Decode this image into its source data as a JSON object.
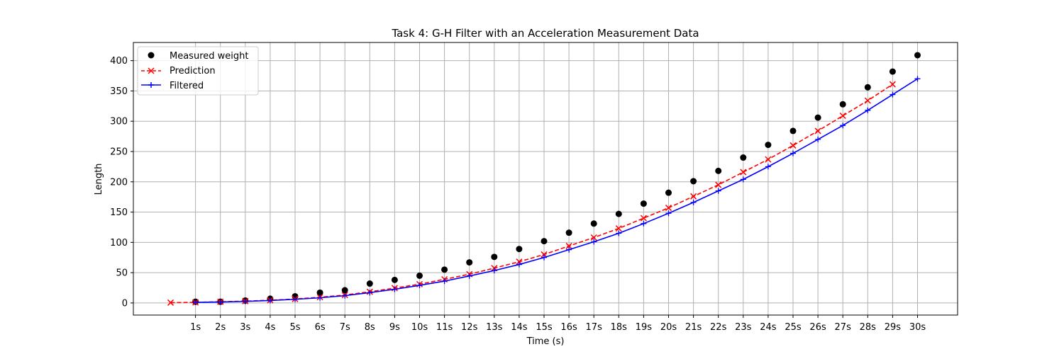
{
  "chart_data": {
    "type": "line",
    "title": "Task 4: G-H Filter with an Acceleration Measurement Data",
    "xlabel": "Time (s)",
    "ylabel": "Length",
    "ylim": [
      -20,
      430
    ],
    "yticks": [
      0,
      50,
      100,
      150,
      200,
      250,
      300,
      350,
      400
    ],
    "x_tick_labels": [
      "1s",
      "2s",
      "3s",
      "4s",
      "5s",
      "6s",
      "7s",
      "8s",
      "9s",
      "10s",
      "11s",
      "12s",
      "13s",
      "14s",
      "15s",
      "16s",
      "17s",
      "18s",
      "19s",
      "20s",
      "21s",
      "22s",
      "23s",
      "24s",
      "25s",
      "26s",
      "27s",
      "28s",
      "29s",
      "30s"
    ],
    "grid": true,
    "legend_position": "top-left",
    "series": [
      {
        "name": "Measured weight",
        "kind": "scatter",
        "color": "#000000",
        "x": [
          1,
          2,
          3,
          4,
          5,
          6,
          7,
          8,
          9,
          10,
          11,
          12,
          13,
          14,
          15,
          16,
          17,
          18,
          19,
          20,
          21,
          22,
          23,
          24,
          25,
          26,
          27,
          28,
          29,
          30
        ],
        "values": [
          2,
          2,
          4,
          7,
          11,
          17,
          21,
          32,
          38,
          45,
          55,
          67,
          76,
          89,
          102,
          116,
          131,
          147,
          164,
          182,
          201,
          218,
          240,
          261,
          284,
          306,
          328,
          356,
          382,
          409
        ]
      },
      {
        "name": "Prediction",
        "kind": "dashed-line-x",
        "color": "#ff0000",
        "x": [
          0,
          1,
          2,
          3,
          4,
          5,
          6,
          7,
          8,
          9,
          10,
          11,
          12,
          13,
          14,
          15,
          16,
          17,
          18,
          19,
          20,
          21,
          22,
          23,
          24,
          25,
          26,
          27,
          28,
          29
        ],
        "values": [
          0.5,
          1,
          2,
          3,
          4.5,
          6.5,
          9.5,
          13,
          18.5,
          24.5,
          31,
          39,
          47.5,
          57.5,
          68,
          80,
          94,
          108,
          123,
          140,
          157,
          176,
          195,
          216,
          237,
          260,
          284,
          309,
          334,
          361
        ]
      },
      {
        "name": "Filtered",
        "kind": "line-plus",
        "color": "#0000ff",
        "x": [
          1,
          2,
          3,
          4,
          5,
          6,
          7,
          8,
          9,
          10,
          11,
          12,
          13,
          14,
          15,
          16,
          17,
          18,
          19,
          20,
          21,
          22,
          23,
          24,
          25,
          26,
          27,
          28,
          29,
          30
        ],
        "values": [
          1,
          1.5,
          2.5,
          4,
          6,
          8.5,
          12,
          17,
          22.5,
          29,
          36,
          44.5,
          53.5,
          63.5,
          75,
          88,
          101,
          115,
          131,
          148,
          166,
          185,
          204,
          225,
          247,
          270,
          293,
          318,
          344,
          370
        ]
      }
    ]
  }
}
